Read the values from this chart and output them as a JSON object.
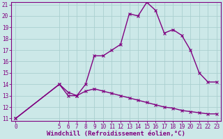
{
  "xlabel": "Windchill (Refroidissement éolien,°C)",
  "line1_x": [
    0,
    5,
    6,
    7,
    8,
    9,
    10,
    11,
    12,
    13,
    14,
    15,
    16,
    17,
    18,
    19,
    20,
    21,
    22,
    23
  ],
  "line1_y": [
    11,
    14,
    13,
    13,
    14,
    16.5,
    16.5,
    17,
    17.5,
    20.2,
    20,
    21.2,
    20.5,
    18.5,
    18.8,
    18.3,
    17,
    15,
    14.2,
    14.2
  ],
  "line2_x": [
    0,
    5,
    6,
    7,
    8,
    9,
    10,
    11,
    12,
    13,
    14,
    15,
    16,
    17,
    18,
    19,
    20,
    21,
    22,
    23
  ],
  "line2_y": [
    11,
    14,
    13.3,
    13,
    13.4,
    13.6,
    13.4,
    13.2,
    13.0,
    12.8,
    12.6,
    12.4,
    12.2,
    12.0,
    11.9,
    11.7,
    11.6,
    11.5,
    11.4,
    11.4
  ],
  "line_color": "#800080",
  "marker": "x",
  "marker_size": 3,
  "bg_color": "#cce8e8",
  "grid_color": "#aacfcf",
  "ylim": [
    11,
    21
  ],
  "yticks": [
    11,
    12,
    13,
    14,
    15,
    16,
    17,
    18,
    19,
    20,
    21
  ],
  "xlim": [
    -0.5,
    23.5
  ],
  "xticks": [
    0,
    5,
    6,
    7,
    8,
    9,
    10,
    11,
    12,
    13,
    14,
    15,
    16,
    17,
    18,
    19,
    20,
    21,
    22,
    23
  ],
  "tick_color": "#800080",
  "label_color": "#800080",
  "axis_color": "#800080",
  "linewidth": 1.0,
  "xlabel_fontsize": 6.5,
  "tick_fontsize": 5.5
}
